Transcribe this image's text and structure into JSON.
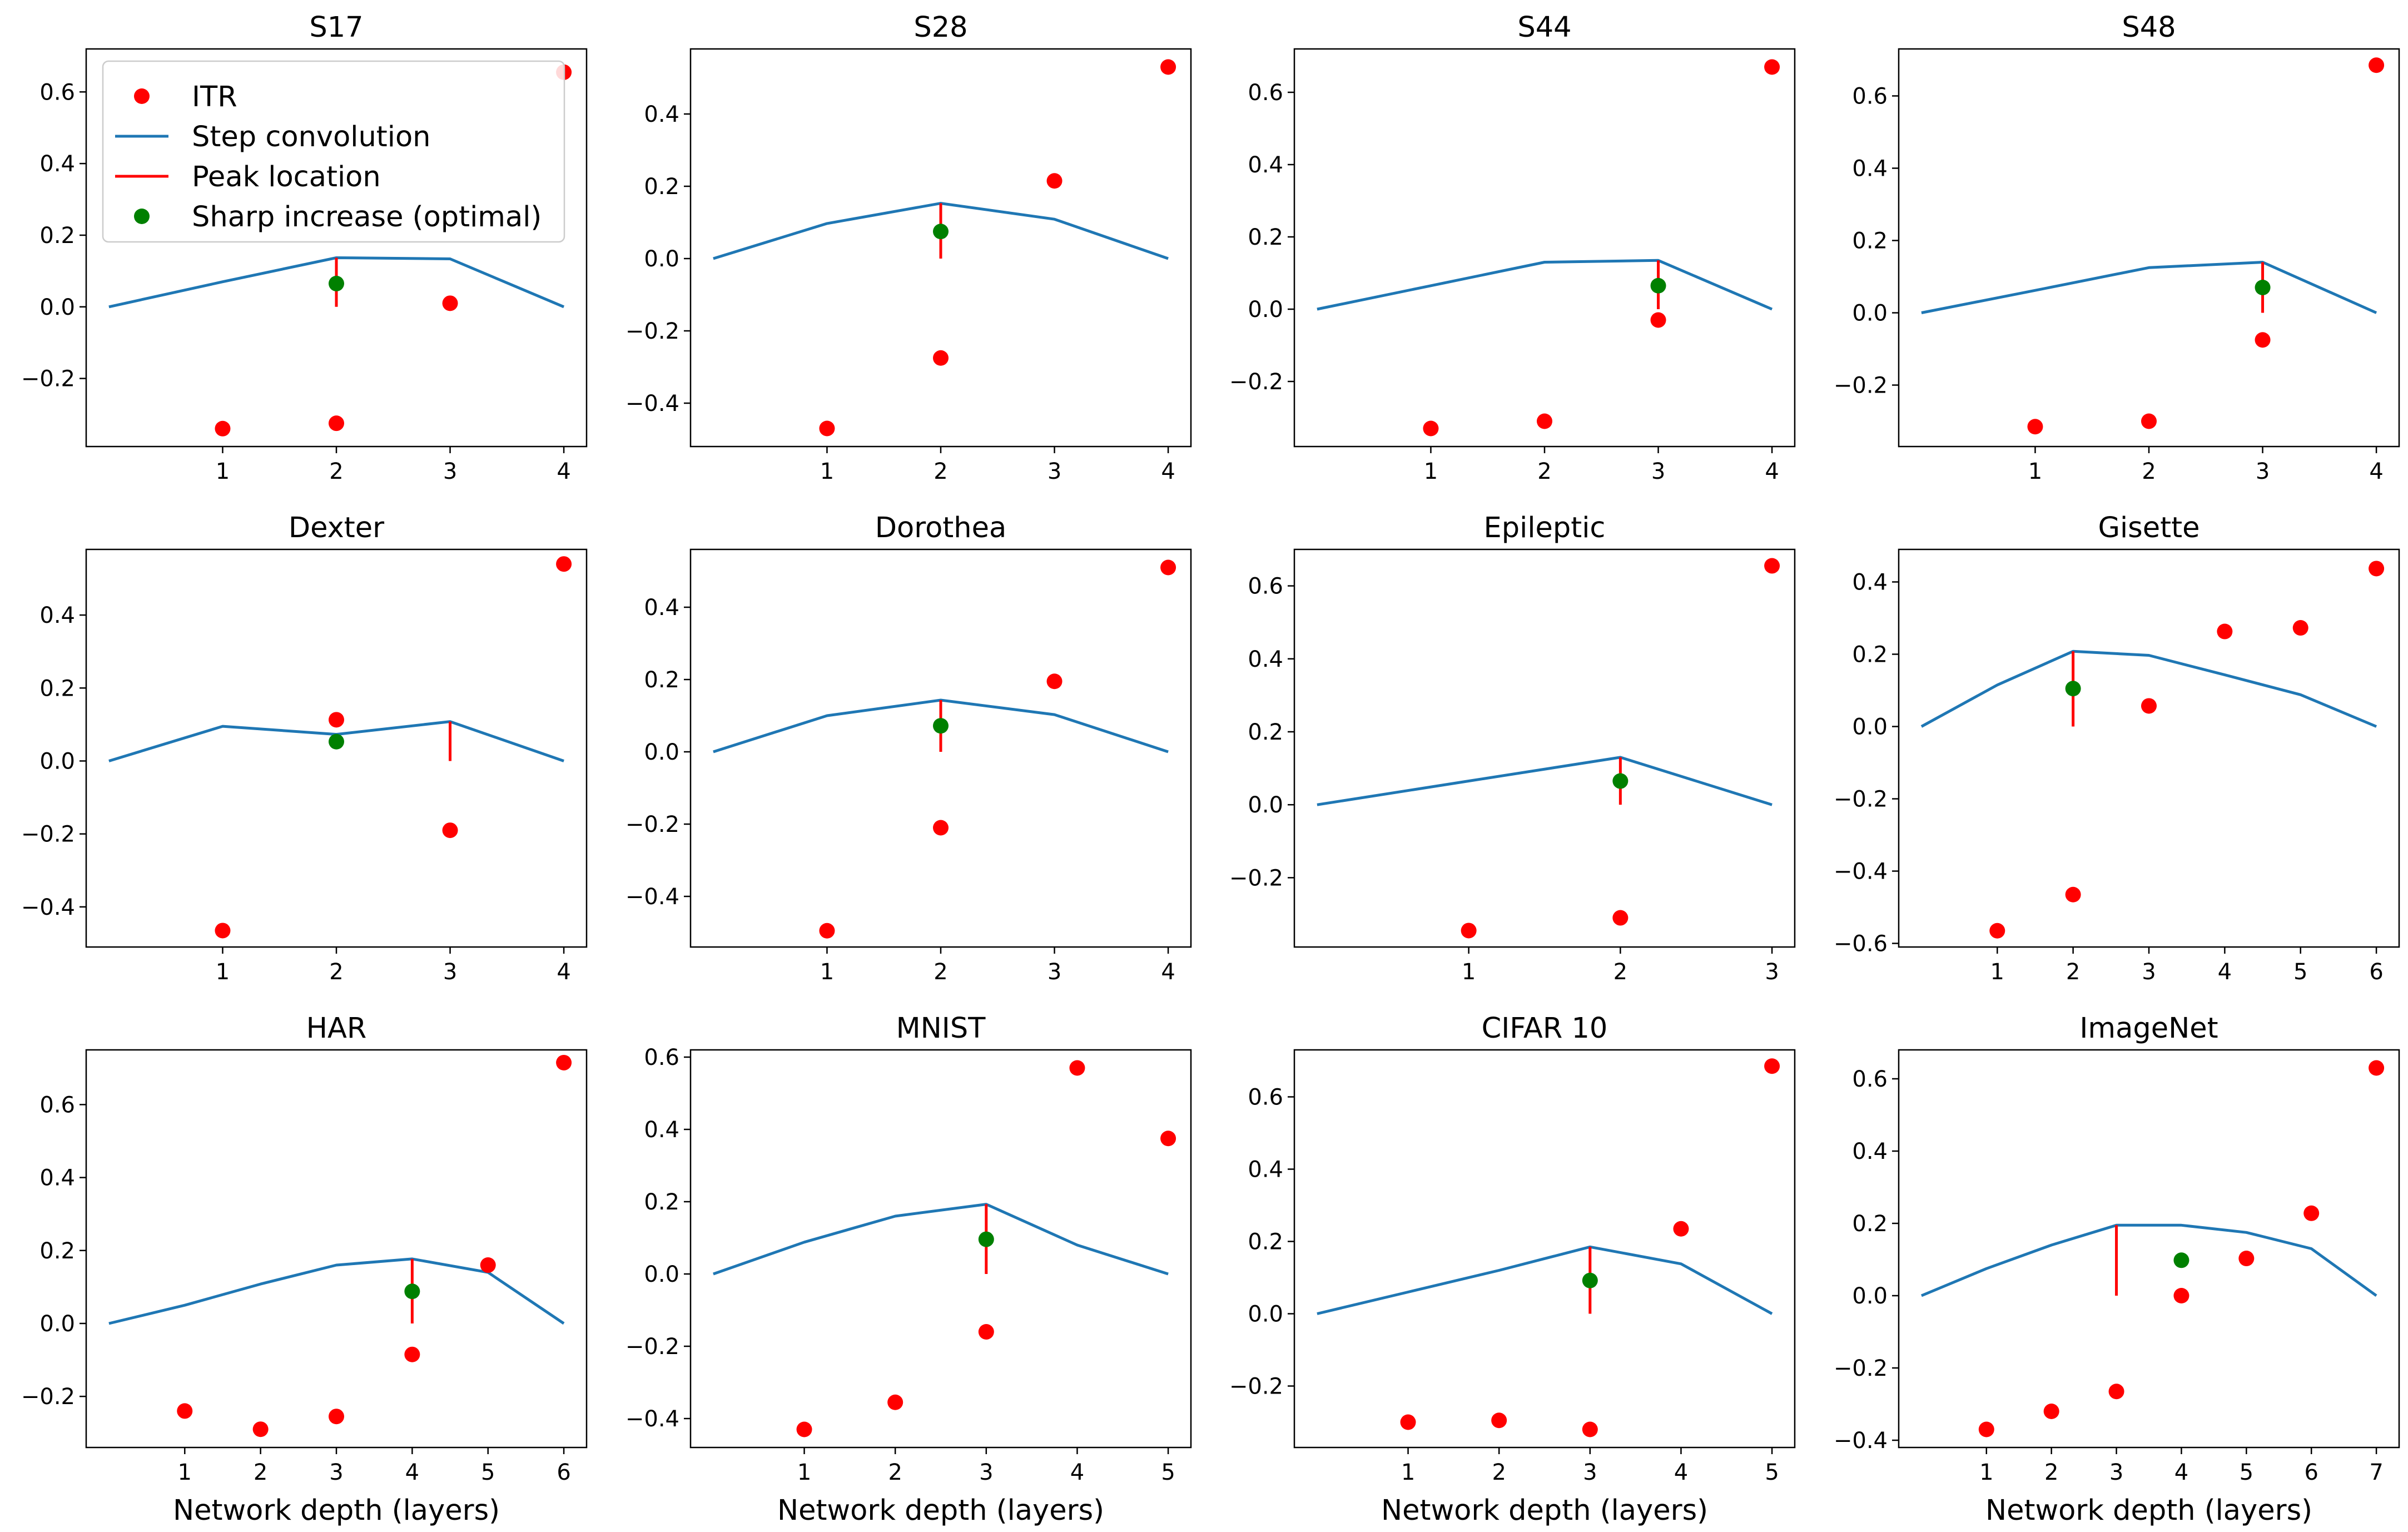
{
  "legend": {
    "itr": "ITR",
    "step": "Step convolution",
    "peak": "Peak location",
    "sharp": "Sharp increase (optimal)"
  },
  "colors": {
    "itr": "#ff0000",
    "step": "#1f77b4",
    "peak": "#ff0000",
    "sharp": "#008000"
  },
  "chart_data": [
    {
      "type": "line",
      "title": "S17",
      "xlabel": "",
      "xticks": [
        1,
        2,
        3,
        4
      ],
      "yticks": [
        -0.2,
        0.0,
        0.2,
        0.4,
        0.6
      ],
      "ylim": [
        -0.39,
        0.72
      ],
      "xlim": [
        -0.2,
        4.2
      ],
      "step": {
        "x": [
          0,
          1,
          2,
          3,
          4
        ],
        "y": [
          0,
          0.07,
          0.137,
          0.134,
          0
        ]
      },
      "itr": {
        "x": [
          1,
          2,
          3,
          4
        ],
        "y": [
          -0.34,
          -0.325,
          0.01,
          0.655
        ]
      },
      "peak": {
        "x": 2,
        "y": 0.137
      },
      "sharp": {
        "x": 2,
        "y": 0.065
      },
      "legend": true
    },
    {
      "type": "line",
      "title": "S28",
      "xlabel": "",
      "xticks": [
        1,
        2,
        3,
        4
      ],
      "yticks": [
        -0.4,
        -0.2,
        0.0,
        0.2,
        0.4
      ],
      "ylim": [
        -0.52,
        0.58
      ],
      "xlim": [
        -0.2,
        4.2
      ],
      "step": {
        "x": [
          0,
          1,
          2,
          3,
          4
        ],
        "y": [
          0,
          0.097,
          0.153,
          0.109,
          0
        ]
      },
      "itr": {
        "x": [
          1,
          2,
          3,
          4
        ],
        "y": [
          -0.47,
          -0.275,
          0.215,
          0.53
        ]
      },
      "peak": {
        "x": 2,
        "y": 0.153
      },
      "sharp": {
        "x": 2,
        "y": 0.075
      }
    },
    {
      "type": "line",
      "title": "S44",
      "xlabel": "",
      "xticks": [
        1,
        2,
        3,
        4
      ],
      "yticks": [
        -0.2,
        0.0,
        0.2,
        0.4,
        0.6
      ],
      "ylim": [
        -0.38,
        0.72
      ],
      "xlim": [
        -0.2,
        4.2
      ],
      "step": {
        "x": [
          0,
          1,
          2,
          3,
          4
        ],
        "y": [
          0,
          0.065,
          0.13,
          0.135,
          0
        ]
      },
      "itr": {
        "x": [
          1,
          2,
          3,
          4
        ],
        "y": [
          -0.33,
          -0.31,
          -0.03,
          0.67
        ]
      },
      "peak": {
        "x": 3,
        "y": 0.135
      },
      "sharp": {
        "x": 3,
        "y": 0.065
      }
    },
    {
      "type": "line",
      "title": "S48",
      "xlabel": "",
      "xticks": [
        1,
        2,
        3,
        4
      ],
      "yticks": [
        -0.2,
        0.0,
        0.2,
        0.4,
        0.6
      ],
      "ylim": [
        -0.37,
        0.73
      ],
      "xlim": [
        -0.2,
        4.2
      ],
      "step": {
        "x": [
          0,
          1,
          2,
          3,
          4
        ],
        "y": [
          0,
          0.062,
          0.125,
          0.14,
          0
        ]
      },
      "itr": {
        "x": [
          1,
          2,
          3,
          4
        ],
        "y": [
          -0.315,
          -0.3,
          -0.075,
          0.685
        ]
      },
      "peak": {
        "x": 3,
        "y": 0.14
      },
      "sharp": {
        "x": 3,
        "y": 0.07
      }
    },
    {
      "type": "line",
      "title": "Dexter",
      "xlabel": "",
      "xticks": [
        1,
        2,
        3,
        4
      ],
      "yticks": [
        -0.4,
        -0.2,
        0.0,
        0.2,
        0.4
      ],
      "ylim": [
        -0.51,
        0.58
      ],
      "xlim": [
        -0.2,
        4.2
      ],
      "step": {
        "x": [
          0,
          1,
          2,
          3,
          4
        ],
        "y": [
          0,
          0.095,
          0.073,
          0.108,
          0
        ]
      },
      "itr": {
        "x": [
          1,
          2,
          3,
          4
        ],
        "y": [
          -0.465,
          0.113,
          -0.19,
          0.54
        ]
      },
      "peak": {
        "x": 3,
        "y": 0.108
      },
      "sharp": {
        "x": 2,
        "y": 0.053
      }
    },
    {
      "type": "line",
      "title": "Dorothea",
      "xlabel": "",
      "xticks": [
        1,
        2,
        3,
        4
      ],
      "yticks": [
        -0.4,
        -0.2,
        0.0,
        0.2,
        0.4
      ],
      "ylim": [
        -0.54,
        0.56
      ],
      "xlim": [
        -0.2,
        4.2
      ],
      "step": {
        "x": [
          0,
          1,
          2,
          3,
          4
        ],
        "y": [
          0,
          0.1,
          0.143,
          0.103,
          0
        ]
      },
      "itr": {
        "x": [
          1,
          2,
          3,
          4
        ],
        "y": [
          -0.495,
          -0.21,
          0.195,
          0.51
        ]
      },
      "peak": {
        "x": 2,
        "y": 0.143
      },
      "sharp": {
        "x": 2,
        "y": 0.072
      }
    },
    {
      "type": "line",
      "title": "Epileptic",
      "xlabel": "",
      "xticks": [
        1,
        2,
        3
      ],
      "yticks": [
        -0.2,
        0.0,
        0.2,
        0.4,
        0.6
      ],
      "ylim": [
        -0.39,
        0.7
      ],
      "xlim": [
        -0.15,
        3.15
      ],
      "step": {
        "x": [
          0,
          1,
          2,
          3
        ],
        "y": [
          0,
          0.065,
          0.13,
          0
        ]
      },
      "itr": {
        "x": [
          1,
          2,
          3
        ],
        "y": [
          -0.345,
          -0.31,
          0.655
        ]
      },
      "peak": {
        "x": 2,
        "y": 0.13
      },
      "sharp": {
        "x": 2,
        "y": 0.065
      }
    },
    {
      "type": "line",
      "title": "Gisette",
      "xlabel": "",
      "xticks": [
        1,
        2,
        3,
        4,
        5,
        6
      ],
      "yticks": [
        -0.6,
        -0.4,
        -0.2,
        0.0,
        0.2,
        0.4
      ],
      "ylim": [
        -0.61,
        0.49
      ],
      "xlim": [
        -0.3,
        6.3
      ],
      "step": {
        "x": [
          0,
          1,
          2,
          3,
          4,
          5,
          6
        ],
        "y": [
          0,
          0.115,
          0.208,
          0.197,
          0.143,
          0.088,
          0
        ]
      },
      "itr": {
        "x": [
          1,
          2,
          3,
          4,
          5,
          6
        ],
        "y": [
          -0.565,
          -0.465,
          0.057,
          0.263,
          0.273,
          0.437
        ]
      },
      "peak": {
        "x": 2,
        "y": 0.208
      },
      "sharp": {
        "x": 2,
        "y": 0.105
      }
    },
    {
      "type": "line",
      "title": "HAR",
      "xlabel": "Network depth (layers)",
      "xticks": [
        1,
        2,
        3,
        4,
        5,
        6
      ],
      "yticks": [
        -0.2,
        0.0,
        0.2,
        0.4,
        0.6
      ],
      "ylim": [
        -0.34,
        0.75
      ],
      "xlim": [
        -0.3,
        6.3
      ],
      "step": {
        "x": [
          0,
          1,
          2,
          3,
          4,
          5,
          6
        ],
        "y": [
          0,
          0.05,
          0.108,
          0.16,
          0.177,
          0.14,
          0
        ]
      },
      "itr": {
        "x": [
          1,
          2,
          3,
          4,
          5,
          6
        ],
        "y": [
          -0.24,
          -0.29,
          -0.255,
          -0.085,
          0.16,
          0.715
        ]
      },
      "peak": {
        "x": 4,
        "y": 0.177
      },
      "sharp": {
        "x": 4,
        "y": 0.088
      }
    },
    {
      "type": "line",
      "title": "MNIST",
      "xlabel": "Network depth (layers)",
      "xticks": [
        1,
        2,
        3,
        4,
        5
      ],
      "yticks": [
        -0.4,
        -0.2,
        0.0,
        0.2,
        0.4,
        0.6
      ],
      "ylim": [
        -0.48,
        0.62
      ],
      "xlim": [
        -0.25,
        5.25
      ],
      "step": {
        "x": [
          0,
          1,
          2,
          3,
          4,
          5
        ],
        "y": [
          0,
          0.088,
          0.16,
          0.193,
          0.08,
          0
        ]
      },
      "itr": {
        "x": [
          1,
          2,
          3,
          4,
          5
        ],
        "y": [
          -0.43,
          -0.355,
          -0.16,
          0.57,
          0.375
        ]
      },
      "peak": {
        "x": 3,
        "y": 0.193
      },
      "sharp": {
        "x": 3,
        "y": 0.096
      }
    },
    {
      "type": "line",
      "title": "CIFAR 10",
      "xlabel": "Network depth (layers)",
      "xticks": [
        1,
        2,
        3,
        4,
        5
      ],
      "yticks": [
        -0.2,
        0.0,
        0.2,
        0.4,
        0.6
      ],
      "ylim": [
        -0.37,
        0.73
      ],
      "xlim": [
        -0.25,
        5.25
      ],
      "step": {
        "x": [
          0,
          1,
          2,
          3,
          4,
          5
        ],
        "y": [
          0,
          0.06,
          0.12,
          0.185,
          0.138,
          0
        ]
      },
      "itr": {
        "x": [
          1,
          2,
          3,
          4,
          5
        ],
        "y": [
          -0.3,
          -0.295,
          -0.32,
          0.235,
          0.685
        ]
      },
      "peak": {
        "x": 3,
        "y": 0.185
      },
      "sharp": {
        "x": 3,
        "y": 0.092
      }
    },
    {
      "type": "line",
      "title": "ImageNet",
      "xlabel": "Network depth (layers)",
      "xticks": [
        1,
        2,
        3,
        4,
        5,
        6,
        7
      ],
      "yticks": [
        -0.4,
        -0.2,
        0.0,
        0.2,
        0.4,
        0.6
      ],
      "ylim": [
        -0.42,
        0.68
      ],
      "xlim": [
        -0.35,
        7.35
      ],
      "step": {
        "x": [
          0,
          1,
          2,
          3,
          4,
          5,
          6,
          7
        ],
        "y": [
          0,
          0.075,
          0.14,
          0.195,
          0.195,
          0.175,
          0.13,
          0
        ]
      },
      "itr": {
        "x": [
          1,
          2,
          3,
          4,
          5,
          6,
          7
        ],
        "y": [
          -0.37,
          -0.32,
          -0.265,
          0.0,
          0.103,
          0.228,
          0.63
        ]
      },
      "peak": {
        "x": 3,
        "y": 0.195
      },
      "sharp": {
        "x": 4,
        "y": 0.098
      }
    }
  ]
}
